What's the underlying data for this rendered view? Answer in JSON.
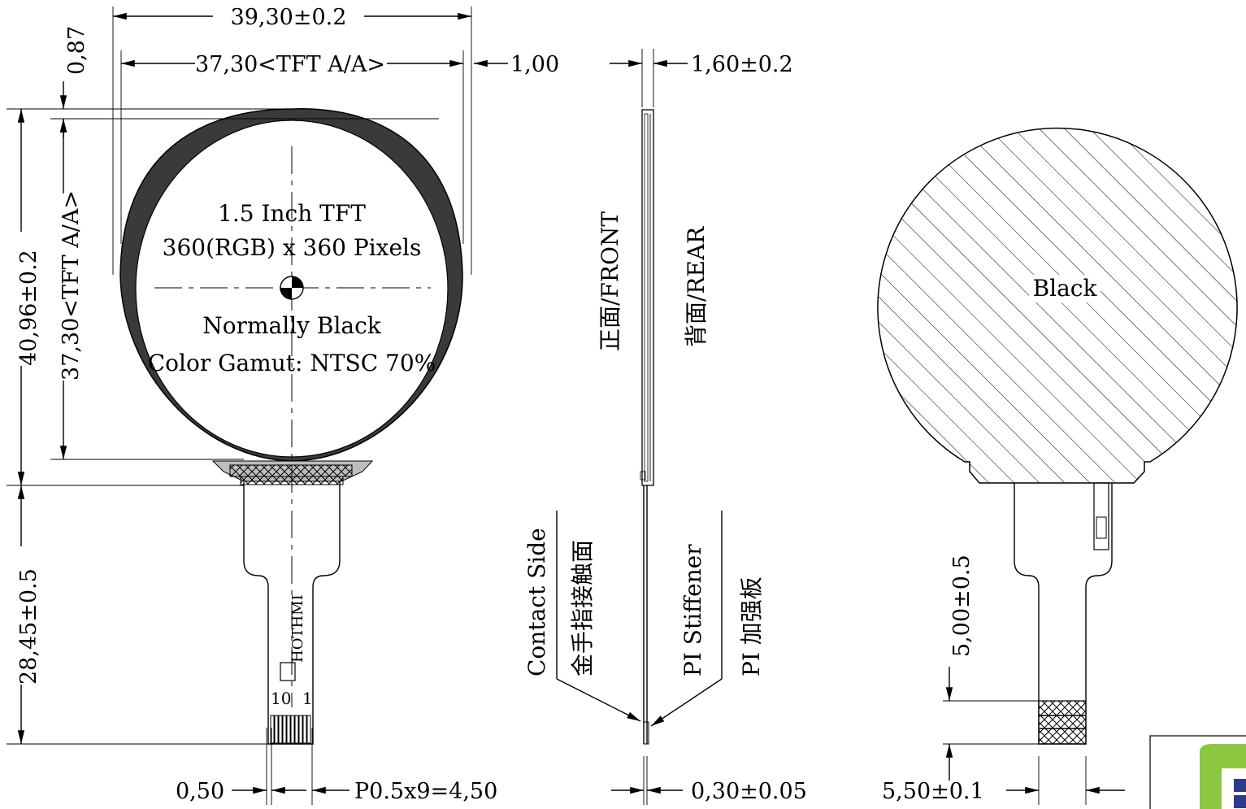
{
  "dimensions": {
    "overall_width": "39,30±0.2",
    "aa_width": "37,30<TFT A/A>",
    "edge_1": "1,00",
    "edge_087": "0,87",
    "thickness": "1,60±0.2",
    "overall_height": "40,96±0.2",
    "aa_height": "37,30<TFT A/A>",
    "fpc_length": "28,45±0.5",
    "pin_width": "0,50",
    "pitch": "P0.5x9=4,50",
    "fpc_thickness": "0,30±0.05",
    "stiffener_len": "5,00±0.5",
    "stiffener_width": "5,50±0.1"
  },
  "front_view": {
    "line1": "1.5 Inch TFT",
    "line2": "360(RGB) x 360 Pixels",
    "line3": "Normally Black",
    "line4": "Color Gamut: NTSC 70%",
    "fpc_brand": "HOTHMI",
    "pin_10": "10",
    "pin_1": "1"
  },
  "side_view": {
    "front": "正面/FRONT",
    "rear": "背面/REAR",
    "contact_en": "Contact Side",
    "contact_cn": "金手指接触面",
    "stiff_en": "PI Stiffener",
    "stiff_cn": "PI 加强板"
  },
  "rear_view": {
    "color": "Black"
  },
  "colors": {
    "line": "#000000",
    "logo_green": "#8dc63f",
    "logo_blue": "#2e3a8c"
  }
}
